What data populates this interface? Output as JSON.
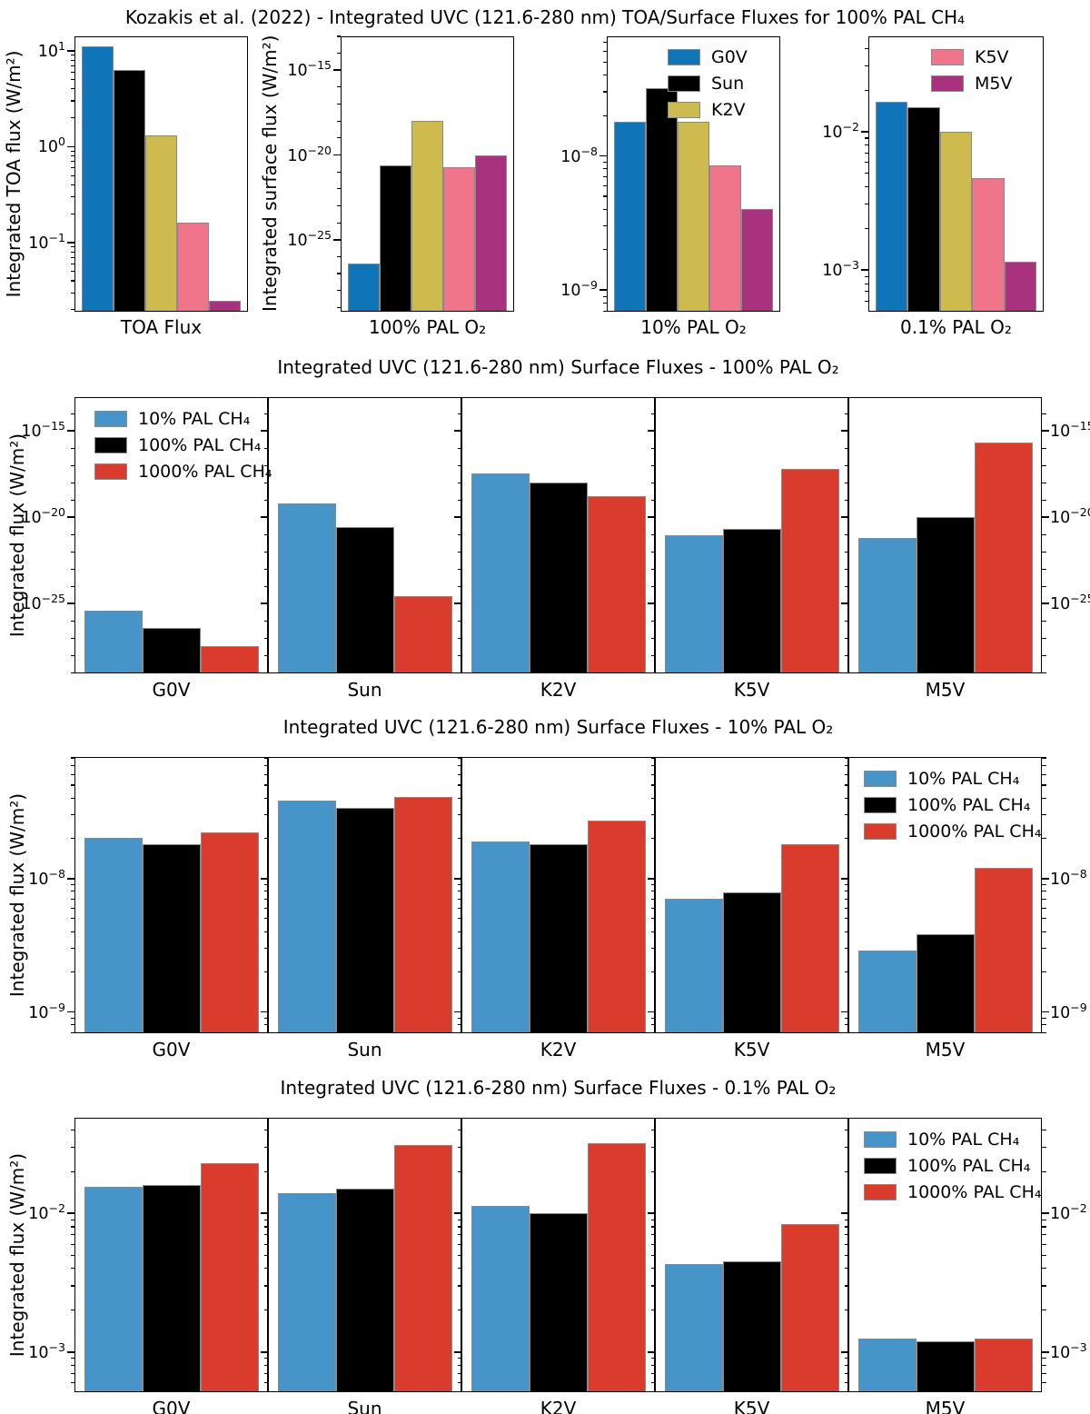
{
  "figure": {
    "suptitle": "Kozakis et al. (2022) - Integrated UVC (121.6-280 nm) TOA/Surface Fluxes for 100% PAL CH₄",
    "star_types": [
      "G0V",
      "Sun",
      "K2V",
      "K5V",
      "M5V"
    ],
    "colors": {
      "G0V": "#0f75b8",
      "Sun": "#000000",
      "K2V": "#cdbb4f",
      "K5V": "#f0758a",
      "M5V": "#a8327d",
      "ch4_10": "#4694c8",
      "ch4_100": "#000000",
      "ch4_1000": "#d93b2d",
      "bar_edge": "#8a8a8a",
      "spine": "#000000"
    }
  },
  "chart_data": [
    {
      "type": "bar",
      "layout": "top-strip",
      "note": "one bar per star type, colored by star legend",
      "panels": [
        {
          "xlabel": "TOA Flux",
          "ylabel": "Integrated TOA flux (W/m²)",
          "yscale": "log",
          "yticks_exp": [
            1,
            0,
            -1
          ],
          "ylim_exp": [
            -1.72,
            1.15
          ],
          "series": [
            "G0V",
            "Sun",
            "K2V",
            "K5V",
            "M5V"
          ],
          "values": [
            11,
            6.3,
            1.3,
            0.16,
            0.025
          ]
        },
        {
          "xlabel": "100% PAL O₂",
          "ylabel": "Integrated surface flux (W/m²)",
          "yscale": "log",
          "yticks_exp": [
            -15,
            -20,
            -25
          ],
          "ylim_exp": [
            -29.25,
            -13.0
          ],
          "series": [
            "G0V",
            "Sun",
            "K2V",
            "K5V",
            "M5V"
          ],
          "values": [
            4e-27,
            2.5e-21,
            1e-18,
            2e-21,
            1e-20
          ]
        },
        {
          "xlabel": "10% PAL O₂",
          "yscale": "log",
          "yticks_exp": [
            -8,
            -9
          ],
          "ylim_exp": [
            -9.16,
            -7.11
          ],
          "series": [
            "G0V",
            "Sun",
            "K2V",
            "K5V",
            "M5V"
          ],
          "values": [
            1.8e-08,
            3.2e-08,
            1.8e-08,
            8.5e-09,
            4e-09
          ],
          "legend": {
            "corner": "top-right",
            "items": [
              "G0V",
              "Sun",
              "K2V"
            ]
          }
        },
        {
          "xlabel": "0.1% PAL O₂",
          "yscale": "log",
          "yticks_exp": [
            -2,
            -3
          ],
          "ylim_exp": [
            -3.3,
            -1.31
          ],
          "series": [
            "G0V",
            "Sun",
            "K2V",
            "K5V",
            "M5V"
          ],
          "values": [
            0.0165,
            0.015,
            0.01,
            0.0046,
            0.00115
          ],
          "legend": {
            "corner": "top-right",
            "items": [
              "K5V",
              "M5V"
            ]
          }
        }
      ]
    },
    {
      "type": "bar",
      "title": "Integrated UVC (121.6-280 nm) Surface Fluxes - 100% PAL O₂",
      "ylabel": "Integrated flux (W/m²)",
      "yscale": "log",
      "categories": [
        "G0V",
        "Sun",
        "K2V",
        "K5V",
        "M5V"
      ],
      "yticks_exp": [
        -15,
        -20,
        -25
      ],
      "ylim_exp": [
        -29.05,
        -13.05
      ],
      "right_tick_labels": true,
      "series": [
        {
          "name": "10% PAL CH₄",
          "color_key": "ch4_10",
          "values": [
            4e-26,
            6.5e-20,
            3.2e-18,
            9.2e-22,
            5.9e-22
          ]
        },
        {
          "name": "100% PAL CH₄",
          "color_key": "ch4_100",
          "values": [
            3.6e-27,
            2.7e-21,
            9.6e-19,
            2e-21,
            1e-20
          ]
        },
        {
          "name": "1000% PAL CH₄",
          "color_key": "ch4_1000",
          "values": [
            3.2e-28,
            2.5e-25,
            1.7e-19,
            5.9e-18,
            2.1e-16
          ]
        }
      ],
      "legend": {
        "panel": 0,
        "corner": "top-left"
      }
    },
    {
      "type": "bar",
      "title": "Integrated UVC (121.6-280 nm) Surface Fluxes - 10% PAL O₂",
      "ylabel": "Integrated flux (W/m²)",
      "yscale": "log",
      "categories": [
        "G0V",
        "Sun",
        "K2V",
        "K5V",
        "M5V"
      ],
      "yticks_exp": [
        -8,
        -9
      ],
      "ylim_exp": [
        -9.16,
        -7.09
      ],
      "right_tick_labels": true,
      "series": [
        {
          "name": "10% PAL CH₄",
          "color_key": "ch4_10",
          "values": [
            2e-08,
            3.8e-08,
            1.9e-08,
            7e-09,
            2.9e-09
          ]
        },
        {
          "name": "100% PAL CH₄",
          "color_key": "ch4_100",
          "values": [
            1.8e-08,
            3.4e-08,
            1.8e-08,
            7.9e-09,
            3.8e-09
          ]
        },
        {
          "name": "1000% PAL CH₄",
          "color_key": "ch4_1000",
          "values": [
            2.2e-08,
            4.1e-08,
            2.7e-08,
            1.8e-08,
            1.2e-08
          ]
        }
      ],
      "legend": {
        "panel": 4,
        "corner": "top-right"
      }
    },
    {
      "type": "bar",
      "title": "Integrated UVC (121.6-280 nm) Surface Fluxes - 0.1% PAL O₂",
      "ylabel": "Integrated flux (W/m²)",
      "yscale": "log",
      "categories": [
        "G0V",
        "Sun",
        "K2V",
        "K5V",
        "M5V"
      ],
      "yticks_exp": [
        -2,
        -3
      ],
      "ylim_exp": [
        -3.29,
        -1.31
      ],
      "right_tick_labels": true,
      "series": [
        {
          "name": "10% PAL CH₄",
          "color_key": "ch4_10",
          "values": [
            0.0155,
            0.014,
            0.0113,
            0.0043,
            0.00125
          ]
        },
        {
          "name": "100% PAL CH₄",
          "color_key": "ch4_100",
          "values": [
            0.016,
            0.015,
            0.01,
            0.0045,
            0.0012
          ]
        },
        {
          "name": "1000% PAL CH₄",
          "color_key": "ch4_1000",
          "values": [
            0.023,
            0.031,
            0.032,
            0.0084,
            0.00125
          ]
        }
      ],
      "legend": {
        "panel": 4,
        "corner": "top-right"
      }
    }
  ]
}
